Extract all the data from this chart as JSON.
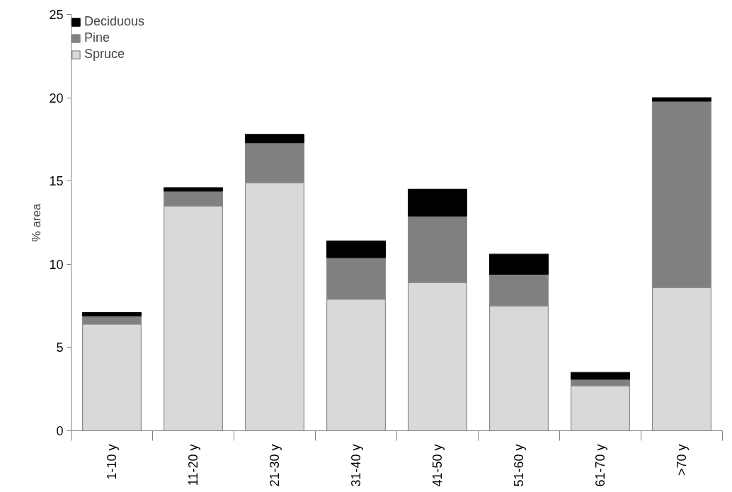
{
  "chart_data": {
    "type": "bar",
    "stacked": true,
    "ylabel": "% area",
    "categories": [
      "1-10 y",
      "11-20 y",
      "21-30 y",
      "31-40 y",
      "41-50 y",
      "51-60 y",
      "61-70 y",
      ">70 y"
    ],
    "series": [
      {
        "name": "Spruce",
        "color": "#d9d9d9",
        "values": [
          6.4,
          13.5,
          14.9,
          7.9,
          8.9,
          7.5,
          2.7,
          8.6
        ]
      },
      {
        "name": "Pine",
        "color": "#808080",
        "values": [
          0.5,
          0.9,
          2.4,
          2.5,
          4.0,
          1.9,
          0.4,
          11.2
        ]
      },
      {
        "name": "Deciduous",
        "color": "#000000",
        "values": [
          0.2,
          0.2,
          0.5,
          1.0,
          1.6,
          1.2,
          0.4,
          0.2
        ]
      }
    ],
    "ylim": [
      0,
      25
    ],
    "yticks": [
      0,
      5,
      10,
      15,
      20,
      25
    ],
    "grid": false,
    "legend": "top left"
  }
}
